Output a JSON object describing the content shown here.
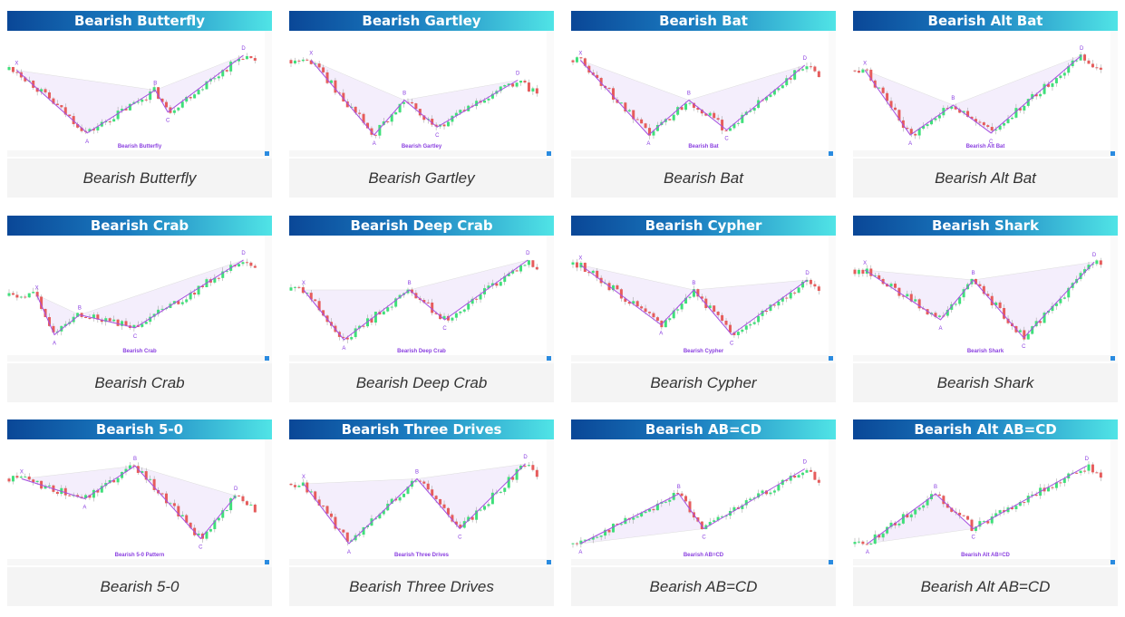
{
  "cards": [
    {
      "title": "Bearish Butterfly",
      "chart_label": "Bearish Butterfly",
      "caption": "Bearish Butterfly",
      "points": [
        [
          "X",
          3,
          75
        ],
        [
          "A",
          31,
          12
        ],
        [
          "B",
          58,
          55
        ],
        [
          "C",
          63,
          33
        ],
        [
          "D",
          93,
          90
        ]
      ]
    },
    {
      "title": "Bearish Gartley",
      "chart_label": "Bearish Gartley",
      "caption": "Bearish Gartley",
      "points": [
        [
          "X",
          8,
          85
        ],
        [
          "A",
          33,
          10
        ],
        [
          "B",
          45,
          45
        ],
        [
          "C",
          58,
          18
        ],
        [
          "D",
          90,
          65
        ]
      ]
    },
    {
      "title": "Bearish Bat",
      "chart_label": "Bearish Bat",
      "caption": "Bearish Bat",
      "points": [
        [
          "X",
          3,
          85
        ],
        [
          "A",
          30,
          10
        ],
        [
          "B",
          46,
          45
        ],
        [
          "C",
          61,
          15
        ],
        [
          "D",
          92,
          80
        ]
      ]
    },
    {
      "title": "Bearish Alt Bat",
      "chart_label": "Bearish Alt Bat",
      "caption": "Bearish Alt Bat",
      "points": [
        [
          "X",
          4,
          75
        ],
        [
          "A",
          22,
          10
        ],
        [
          "B",
          39,
          40
        ],
        [
          "C",
          54,
          12
        ],
        [
          "D",
          90,
          90
        ]
      ]
    },
    {
      "title": "Bearish Crab",
      "chart_label": "Bearish Crab",
      "caption": "Bearish Crab",
      "points": [
        [
          "X",
          11,
          55
        ],
        [
          "A",
          18,
          15
        ],
        [
          "B",
          28,
          35
        ],
        [
          "C",
          50,
          22
        ],
        [
          "D",
          93,
          90
        ]
      ]
    },
    {
      "title": "Bearish Deep Crab",
      "chart_label": "Bearish Deep Crab",
      "caption": "Bearish Deep Crab",
      "points": [
        [
          "X",
          5,
          60
        ],
        [
          "A",
          21,
          10
        ],
        [
          "B",
          47,
          60
        ],
        [
          "C",
          61,
          30
        ],
        [
          "D",
          94,
          90
        ]
      ]
    },
    {
      "title": "Bearish Cypher",
      "chart_label": "Bearish Cypher",
      "caption": "Bearish Cypher",
      "points": [
        [
          "X",
          3,
          85
        ],
        [
          "A",
          35,
          25
        ],
        [
          "B",
          48,
          60
        ],
        [
          "C",
          63,
          15
        ],
        [
          "D",
          93,
          70
        ]
      ]
    },
    {
      "title": "Bearish Shark",
      "chart_label": "Bearish Shark",
      "caption": "Bearish Shark",
      "points": [
        [
          "X",
          4,
          80
        ],
        [
          "A",
          34,
          30
        ],
        [
          "B",
          47,
          70
        ],
        [
          "C",
          67,
          12
        ],
        [
          "D",
          95,
          88
        ]
      ]
    },
    {
      "title": "Bearish 5-0",
      "chart_label": "Bearish 5-0 Pattern",
      "caption": "Bearish 5-0",
      "points": [
        [
          "X",
          5,
          75
        ],
        [
          "A",
          30,
          55
        ],
        [
          "B",
          50,
          88
        ],
        [
          "C",
          76,
          15
        ],
        [
          "D",
          90,
          58
        ]
      ]
    },
    {
      "title": "Bearish Three Drives",
      "chart_label": "Bearish Three Drives",
      "caption": "Bearish Three Drives",
      "points": [
        [
          "X",
          5,
          70
        ],
        [
          "A",
          23,
          10
        ],
        [
          "B",
          50,
          75
        ],
        [
          "C",
          67,
          25
        ],
        [
          "D",
          93,
          90
        ]
      ]
    },
    {
      "title": "Bearish AB=CD",
      "chart_label": "Bearish AB=CD",
      "caption": "Bearish AB=CD",
      "points": [
        [
          "A",
          3,
          10
        ],
        [
          "B",
          42,
          60
        ],
        [
          "C",
          52,
          25
        ],
        [
          "D",
          92,
          85
        ]
      ]
    },
    {
      "title": "Bearish Alt AB=CD",
      "chart_label": "Bearish Alt AB=CD",
      "caption": "Bearish Alt AB=CD",
      "points": [
        [
          "A",
          5,
          10
        ],
        [
          "B",
          32,
          60
        ],
        [
          "C",
          47,
          25
        ],
        [
          "D",
          92,
          88
        ]
      ]
    }
  ],
  "colors": {
    "line": "#a64fe0",
    "fill": "#f4eefc",
    "up": "#3fe07a",
    "down": "#e65c5c",
    "label": "#8a3fe0"
  }
}
